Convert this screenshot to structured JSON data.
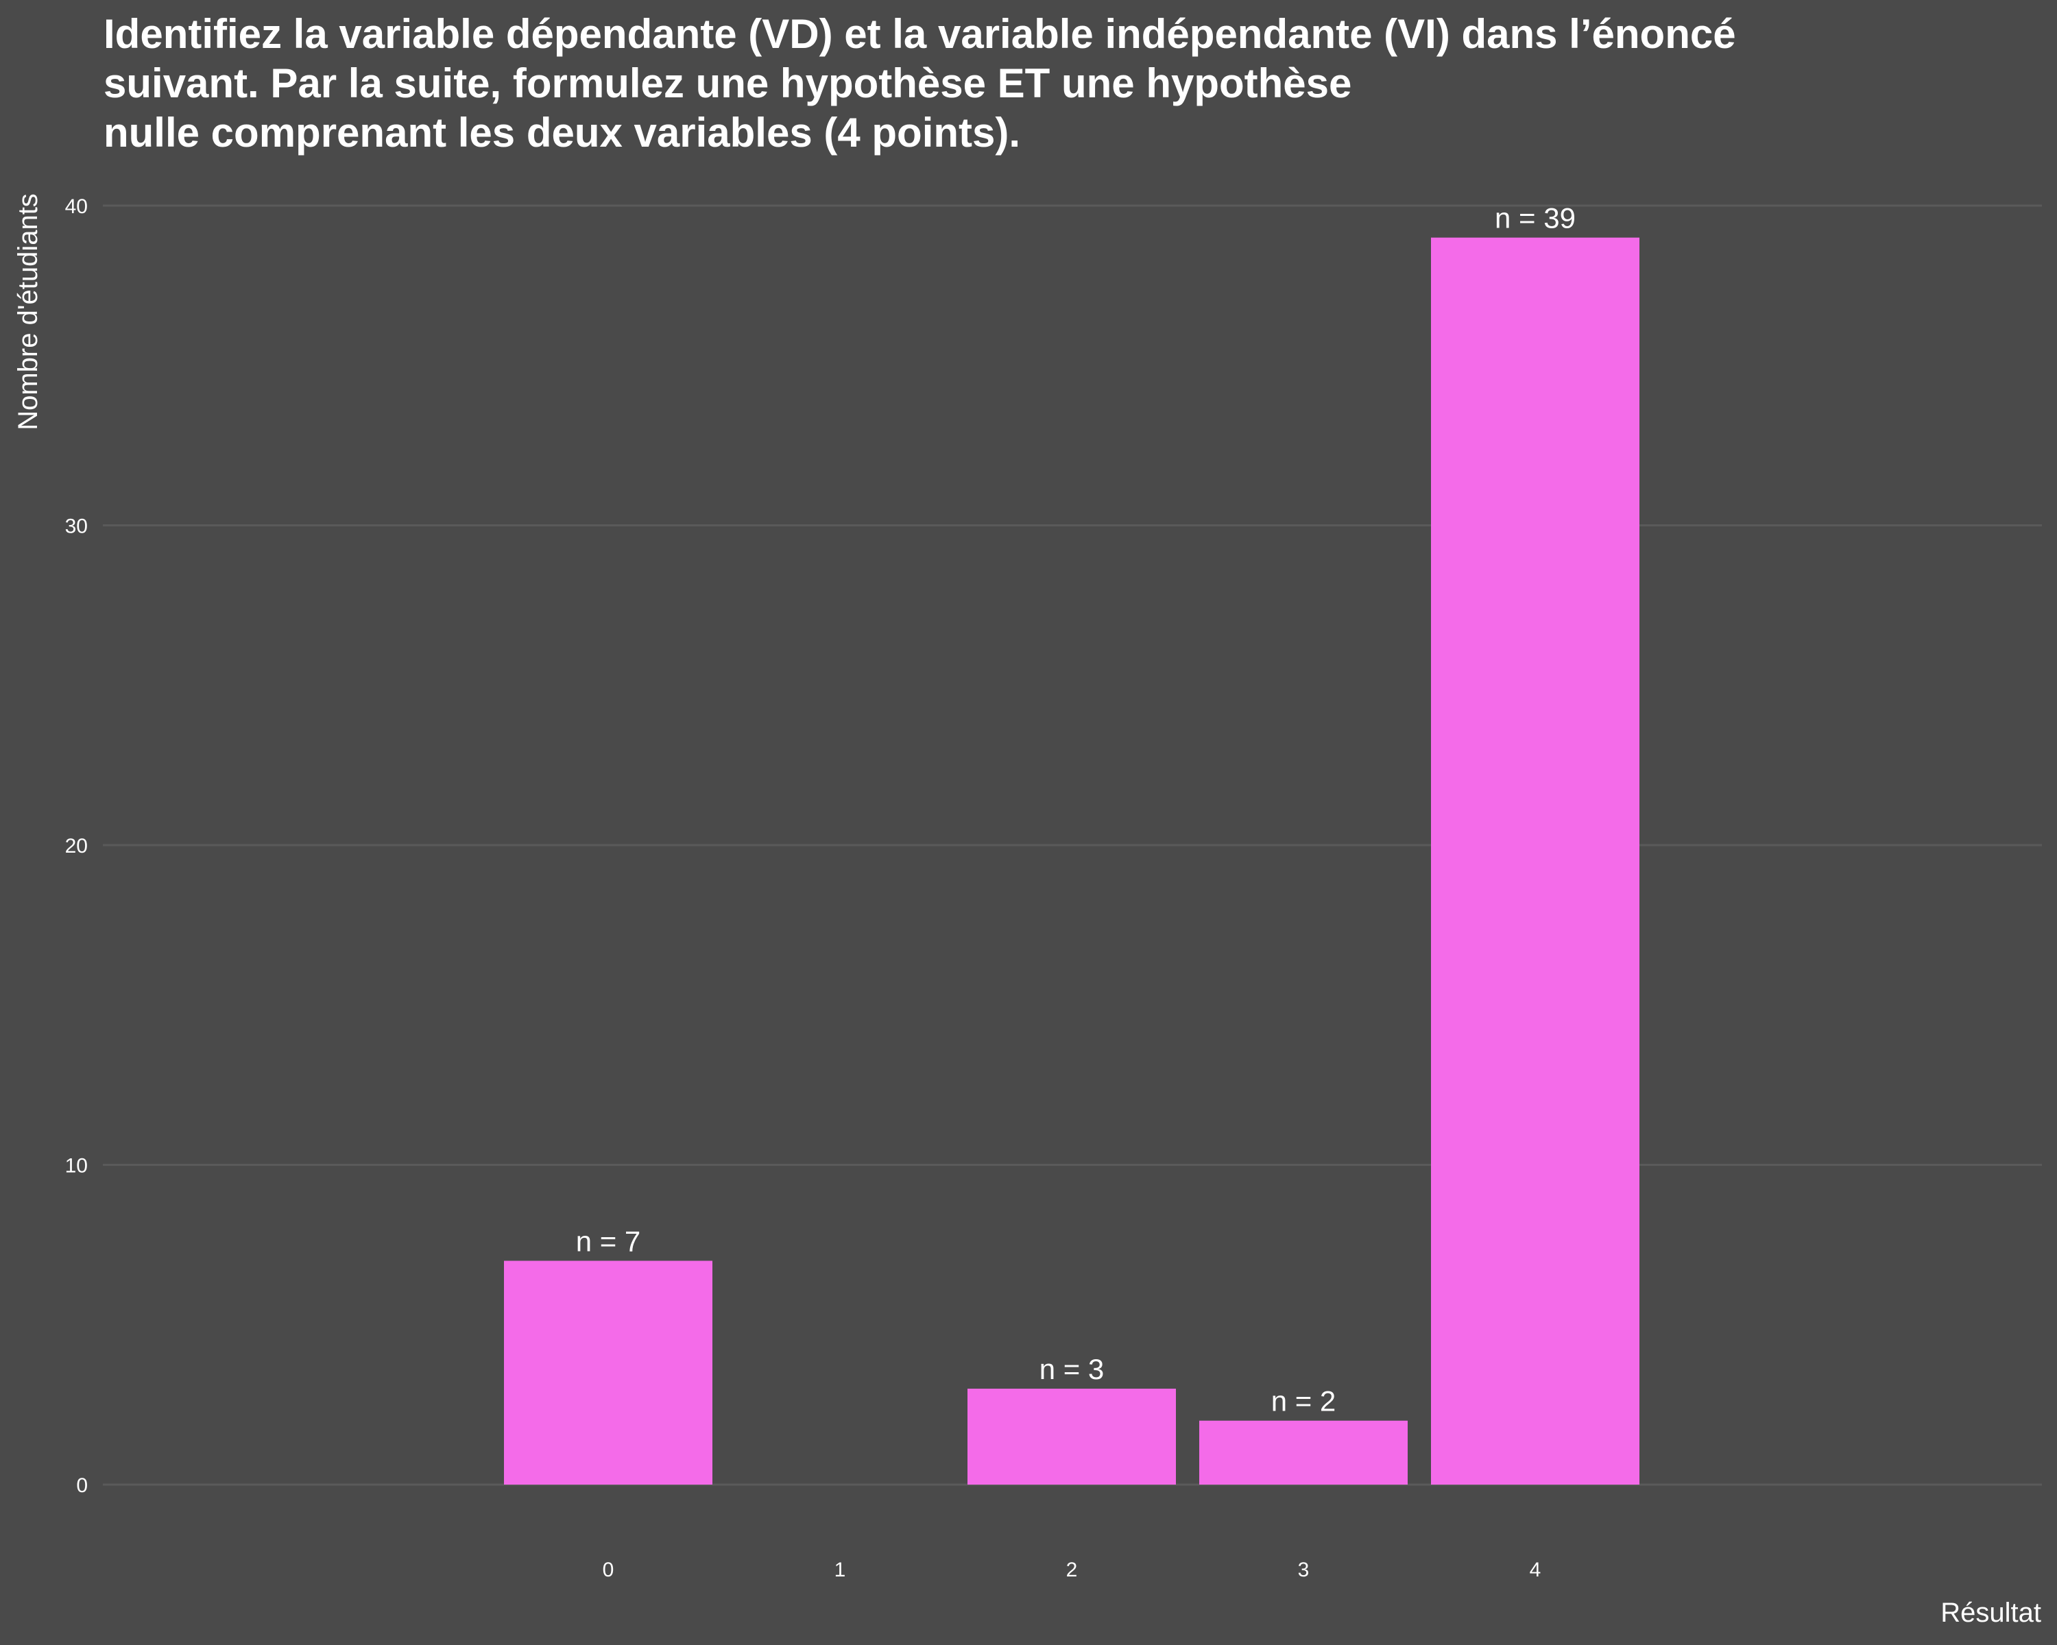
{
  "chart_data": {
    "type": "bar",
    "title_lines": [
      "Identifiez la variable dépendante (VD) et la variable indépendante (VI) dans l’énoncé",
      "suivant. Par la suite, formulez une hypothèse ET une hypothèse",
      "nulle comprenant les deux variables (4 points)."
    ],
    "xlabel": "Résultat",
    "ylabel": "Nombre d'étudiants",
    "categories": [
      "0",
      "1",
      "2",
      "3",
      "4"
    ],
    "values": [
      7,
      0,
      3,
      2,
      39
    ],
    "data_labels": [
      "n = 7",
      "",
      "n = 3",
      "n = 2",
      "n = 39"
    ],
    "ylim": [
      0,
      40
    ],
    "yticks": [
      0,
      10,
      20,
      30,
      40
    ],
    "grid": true,
    "bar_color": "#f46be9",
    "background_color": "#4a4a4a",
    "grid_color": "#5a5a5a"
  }
}
